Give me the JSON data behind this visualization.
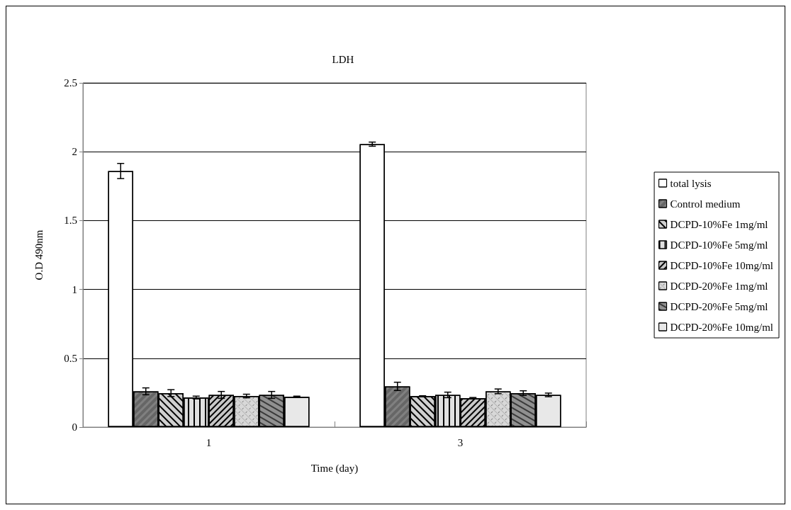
{
  "chart_data": {
    "type": "bar",
    "title": "LDH",
    "xlabel": "Time (day)",
    "ylabel": "O.D 490nm",
    "categories": [
      "1",
      "3"
    ],
    "series": [
      {
        "name": "total lysis",
        "color": "#ffffff",
        "values": [
          1.86,
          2.055
        ],
        "errors": [
          0.055,
          0.015
        ]
      },
      {
        "name": "Control medium",
        "color": "#808080",
        "values": [
          0.26,
          0.296
        ],
        "errors": [
          0.025,
          0.03
        ]
      },
      {
        "name": "DCPD-10%Fe 1mg/ml",
        "color": "#d0d0d0",
        "values": [
          0.247,
          0.225
        ],
        "errors": [
          0.025,
          0.003
        ]
      },
      {
        "name": "DCPD-10%Fe 5mg/ml",
        "color": "#e0e0e0",
        "values": [
          0.215,
          0.234
        ],
        "errors": [
          0.01,
          0.02
        ]
      },
      {
        "name": "DCPD-10%Fe 10mg/ml",
        "color": "#c8c8c8",
        "values": [
          0.234,
          0.21
        ],
        "errors": [
          0.025,
          0.005
        ]
      },
      {
        "name": "DCPD-20%Fe 1mg/ml",
        "color": "#d8d8d8",
        "values": [
          0.226,
          0.26
        ],
        "errors": [
          0.013,
          0.017
        ]
      },
      {
        "name": "DCPD-20%Fe 5mg/ml",
        "color": "#909090",
        "values": [
          0.234,
          0.247
        ],
        "errors": [
          0.025,
          0.017
        ]
      },
      {
        "name": "DCPD-20%Fe 10mg/ml",
        "color": "#e8e8e8",
        "values": [
          0.22,
          0.234
        ],
        "errors": [
          0.005,
          0.013
        ]
      }
    ],
    "ylim": [
      0,
      2.5
    ],
    "yticks": [
      0,
      0.5,
      1,
      1.5,
      2,
      2.5
    ],
    "grid": "y",
    "legend": "right"
  }
}
